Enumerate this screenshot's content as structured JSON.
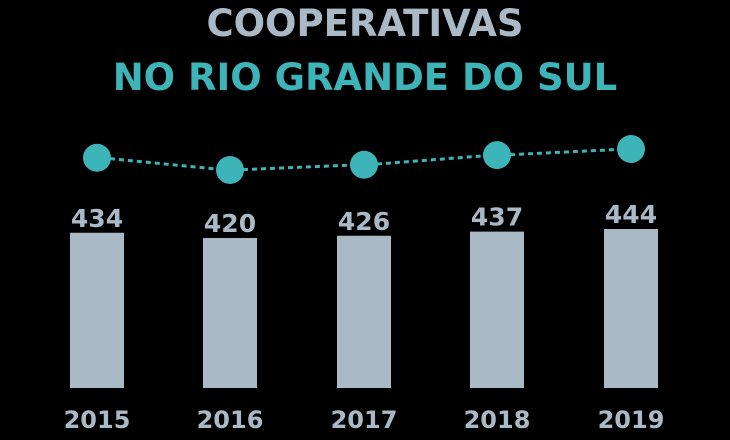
{
  "title_line1": "COOPERATIVAS",
  "title_line2": "NO RIO GRANDE DO SUL",
  "colors": {
    "background": "#000000",
    "bar": "#a9bac6",
    "accent": "#3cb4b8",
    "text": "#a9bac6"
  },
  "chart_data": {
    "type": "bar",
    "title": "COOPERATIVAS NO RIO GRANDE DO SUL",
    "categories": [
      "2015",
      "2016",
      "2017",
      "2018",
      "2019"
    ],
    "values": [
      434,
      420,
      426,
      437,
      444
    ],
    "overlay_line": {
      "values": [
        434,
        420,
        426,
        437,
        444
      ],
      "style": "dashed",
      "markers": "circle"
    },
    "data_labels": [
      "434",
      "420",
      "426",
      "437",
      "444"
    ],
    "grid": false,
    "legend": "none"
  }
}
